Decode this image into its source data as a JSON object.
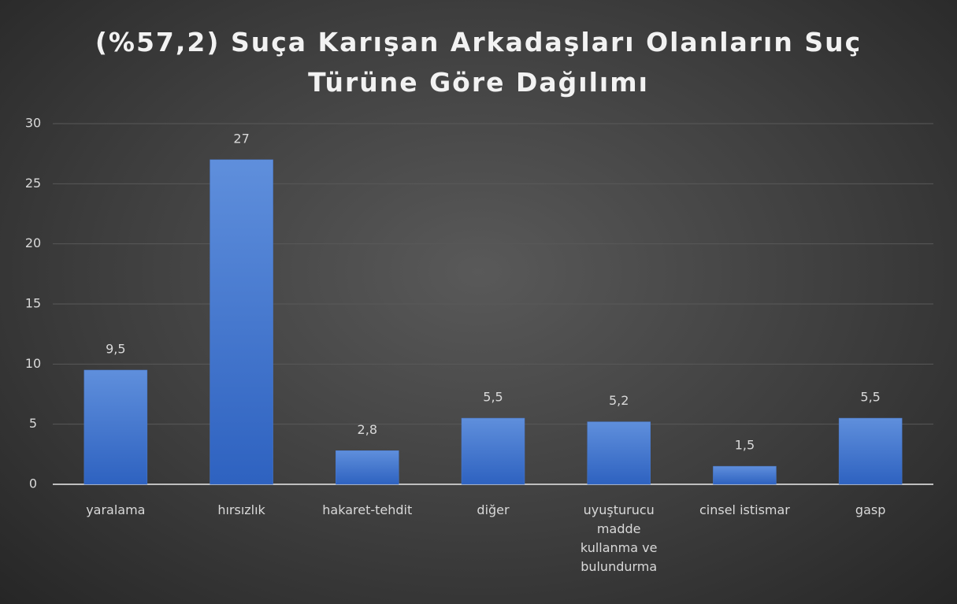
{
  "chart_data": {
    "type": "bar",
    "title": "(%57,2) Suça Karışan Arkadaşları Olanların Suç Türüne Göre Dağılımı",
    "categories": [
      "yaralama",
      "hırsızlık",
      "hakaret-tehdit",
      "diğer",
      "uyuşturucu madde kullanma ve bulundurma",
      "cinsel istismar",
      "gasp"
    ],
    "values": [
      9.5,
      27,
      2.8,
      5.5,
      5.2,
      1.5,
      5.5
    ],
    "value_labels": [
      "9,5",
      "27",
      "2,8",
      "5,5",
      "5,2",
      "1,5",
      "5,5"
    ],
    "color": "#4a7bd0",
    "ylim": [
      0,
      30
    ],
    "yticks": [
      0,
      5,
      10,
      15,
      20,
      25,
      30
    ],
    "grid": true
  }
}
